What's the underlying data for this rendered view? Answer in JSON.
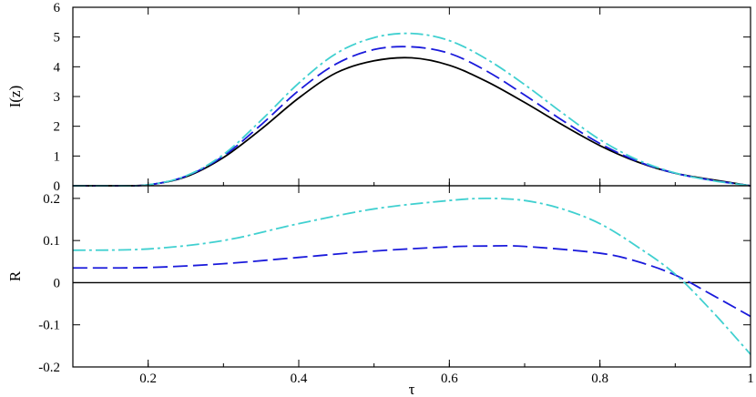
{
  "chart_data": [
    {
      "type": "line",
      "panel": "top",
      "ylabel": "I(z)",
      "xlim": [
        0.1,
        1.0
      ],
      "ylim": [
        0,
        6
      ],
      "x_ticks": [
        "0.2",
        "0.4",
        "0.6",
        "0.8",
        "1"
      ],
      "y_ticks": [
        "0",
        "1",
        "2",
        "3",
        "4",
        "5",
        "6"
      ],
      "grid": false,
      "series": [
        {
          "style": "solid",
          "color": "#000000",
          "x": [
            0.1,
            0.15,
            0.2,
            0.25,
            0.3,
            0.35,
            0.4,
            0.45,
            0.5,
            0.55,
            0.6,
            0.65,
            0.7,
            0.75,
            0.8,
            0.85,
            0.9,
            0.95,
            1.0
          ],
          "y": [
            0.0,
            0.0,
            0.03,
            0.3,
            0.95,
            1.9,
            2.95,
            3.8,
            4.2,
            4.3,
            4.05,
            3.5,
            2.8,
            2.05,
            1.35,
            0.8,
            0.42,
            0.2,
            0.0
          ]
        },
        {
          "style": "dashed",
          "color": "#1a1adb",
          "x": [
            0.1,
            0.15,
            0.2,
            0.25,
            0.3,
            0.35,
            0.4,
            0.45,
            0.5,
            0.55,
            0.6,
            0.65,
            0.7,
            0.75,
            0.8,
            0.85,
            0.9,
            0.95,
            1.0
          ],
          "y": [
            0.0,
            0.0,
            0.03,
            0.32,
            1.0,
            2.05,
            3.2,
            4.1,
            4.58,
            4.67,
            4.45,
            3.85,
            3.05,
            2.2,
            1.42,
            0.82,
            0.42,
            0.18,
            0.0
          ]
        },
        {
          "style": "dashdot",
          "color": "#40d0d0",
          "x": [
            0.1,
            0.15,
            0.2,
            0.25,
            0.3,
            0.35,
            0.4,
            0.45,
            0.5,
            0.55,
            0.6,
            0.65,
            0.7,
            0.75,
            0.8,
            0.85,
            0.9,
            0.95,
            1.0
          ],
          "y": [
            0.0,
            0.0,
            0.03,
            0.33,
            1.05,
            2.2,
            3.45,
            4.45,
            4.98,
            5.12,
            4.88,
            4.25,
            3.4,
            2.45,
            1.55,
            0.87,
            0.43,
            0.17,
            0.0
          ]
        }
      ]
    },
    {
      "type": "line",
      "panel": "bottom",
      "xlabel": "τ",
      "ylabel": "R",
      "xlim": [
        0.1,
        1.0
      ],
      "ylim": [
        -0.2,
        0.23
      ],
      "x_ticks": [
        "0.2",
        "0.4",
        "0.6",
        "0.8",
        "1"
      ],
      "y_ticks": [
        "-0.2",
        "-0.1",
        "0",
        "0.1",
        "0.2"
      ],
      "grid": false,
      "zero_line": true,
      "series": [
        {
          "style": "dashed",
          "color": "#1a1adb",
          "x": [
            0.1,
            0.2,
            0.3,
            0.4,
            0.5,
            0.6,
            0.65,
            0.7,
            0.8,
            0.85,
            0.9,
            0.95,
            1.0
          ],
          "y": [
            0.035,
            0.036,
            0.045,
            0.06,
            0.075,
            0.085,
            0.087,
            0.086,
            0.07,
            0.05,
            0.018,
            -0.03,
            -0.08
          ]
        },
        {
          "style": "dashdot",
          "color": "#40d0d0",
          "x": [
            0.1,
            0.2,
            0.3,
            0.4,
            0.5,
            0.6,
            0.65,
            0.7,
            0.75,
            0.8,
            0.85,
            0.9,
            0.95,
            1.0
          ],
          "y": [
            0.077,
            0.08,
            0.1,
            0.14,
            0.175,
            0.195,
            0.2,
            0.195,
            0.175,
            0.14,
            0.085,
            0.02,
            -0.07,
            -0.17
          ]
        }
      ]
    }
  ]
}
